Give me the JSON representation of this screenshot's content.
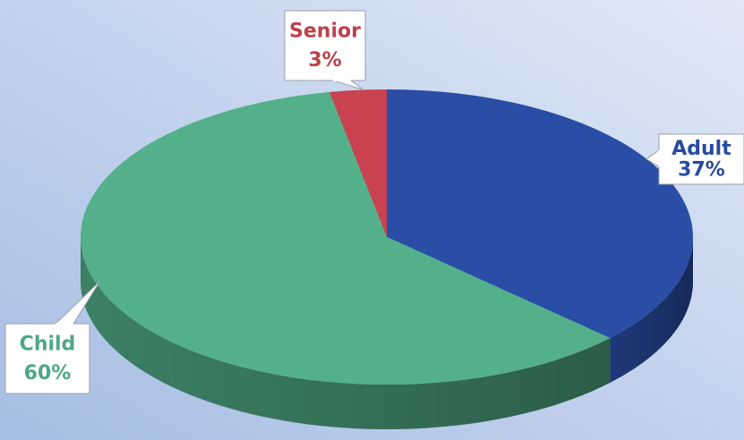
{
  "chart_data": {
    "type": "pie",
    "categories": [
      "Adult",
      "Child",
      "Senior"
    ],
    "values": [
      37,
      60,
      3
    ],
    "value_labels": [
      "37%",
      "60%",
      "3%"
    ],
    "colors": [
      "#2a4ea6",
      "#53b08b",
      "#c8434f"
    ]
  }
}
